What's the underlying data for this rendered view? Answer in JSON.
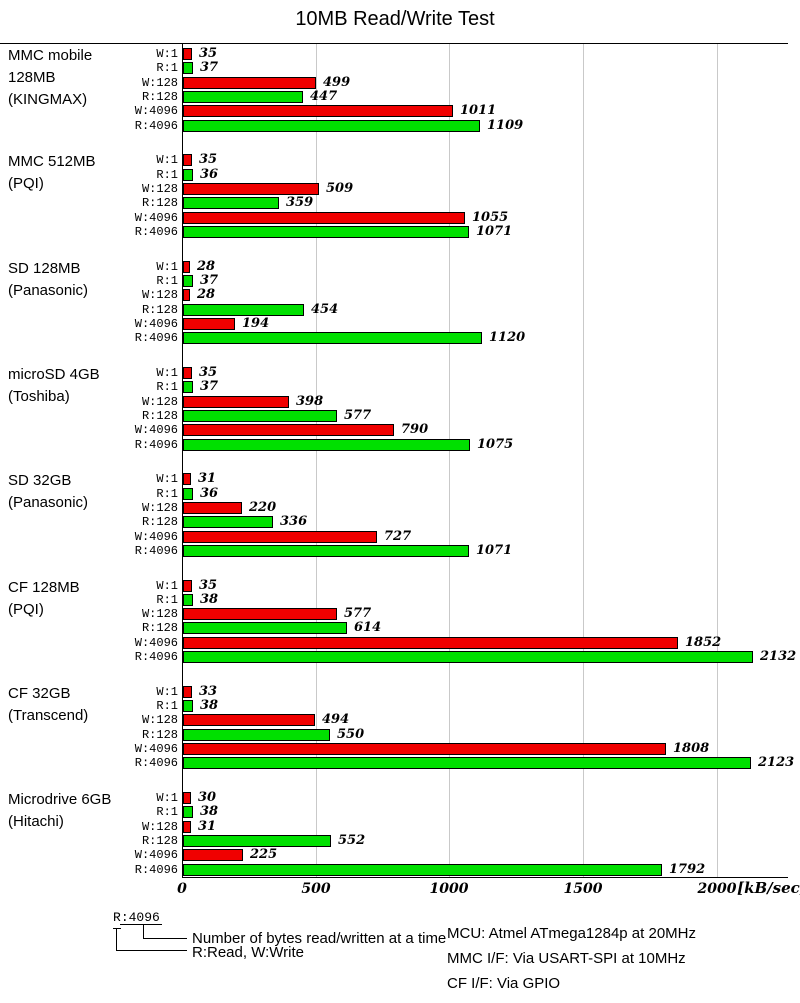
{
  "title": "10MB Read/Write Test",
  "chart_data": {
    "type": "bar",
    "orientation": "horizontal",
    "title": "10MB Read/Write Test",
    "xlabel": "[kB/sec]",
    "x_ticks": [
      0,
      500,
      1000,
      1500,
      2000
    ],
    "x_max": 2255,
    "grid": true,
    "legend_position": "none",
    "bar_labels": [
      "W:1",
      "R:1",
      "W:128",
      "R:128",
      "W:4096",
      "R:4096"
    ],
    "series_colors": {
      "write": "#f00000",
      "read": "#00e000"
    },
    "groups": [
      {
        "name_lines": [
          "MMC mobile",
          "128MB",
          "(KINGMAX)"
        ],
        "values": [
          35,
          37,
          499,
          447,
          1011,
          1109
        ]
      },
      {
        "name_lines": [
          "MMC 512MB",
          "(PQI)"
        ],
        "values": [
          35,
          36,
          509,
          359,
          1055,
          1071
        ]
      },
      {
        "name_lines": [
          "SD 128MB",
          "(Panasonic)"
        ],
        "values": [
          28,
          37,
          28,
          454,
          194,
          1120
        ]
      },
      {
        "name_lines": [
          "microSD 4GB",
          "(Toshiba)"
        ],
        "values": [
          35,
          37,
          398,
          577,
          790,
          1075
        ]
      },
      {
        "name_lines": [
          "SD 32GB",
          "(Panasonic)"
        ],
        "values": [
          31,
          36,
          220,
          336,
          727,
          1071
        ]
      },
      {
        "name_lines": [
          "CF 128MB",
          "(PQI)"
        ],
        "values": [
          35,
          38,
          577,
          614,
          1852,
          2132
        ]
      },
      {
        "name_lines": [
          "CF 32GB",
          "(Transcend)"
        ],
        "values": [
          33,
          38,
          494,
          550,
          1808,
          2123
        ]
      },
      {
        "name_lines": [
          "Microdrive 6GB",
          "(Hitachi)"
        ],
        "values": [
          30,
          38,
          31,
          552,
          225,
          1792
        ]
      }
    ]
  },
  "key": {
    "label_read_part": "R",
    "label_size_part": ":4096",
    "size_note": "Number of bytes read/written at a time",
    "rw_note": "R:Read, W:Write"
  },
  "footer": {
    "lines": [
      "MCU: Atmel ATmega1284p at 20MHz",
      "MMC I/F: Via USART-SPI at 10MHz",
      "CF I/F: Via GPIO"
    ]
  }
}
